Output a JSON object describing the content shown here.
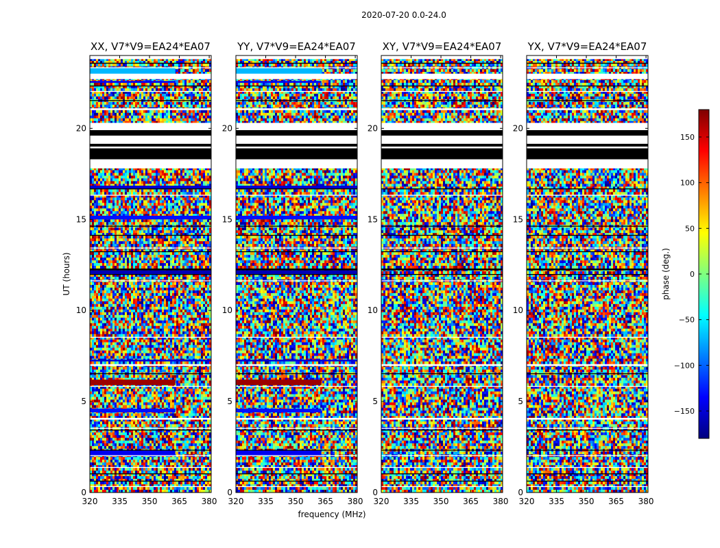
{
  "figure_title": "2020-07-20 0.0-24.0",
  "chart_data": {
    "type": "heatmap",
    "title": "2020-07-20 0.0-24.0",
    "xlabel": "frequency (MHz)",
    "ylabel": "UT (hours)",
    "xlim": [
      320,
      381
    ],
    "ylim": [
      0,
      24
    ],
    "x_ticks": [
      320,
      335,
      350,
      365,
      380
    ],
    "y_ticks": [
      0,
      5,
      10,
      15,
      20
    ],
    "colormap": "jet",
    "colorbar": {
      "label": "phase (deg.)",
      "range": [
        -180,
        180
      ],
      "ticks": [
        -150,
        -100,
        -50,
        0,
        50,
        100,
        150
      ],
      "tick_labels": [
        "−150",
        "−100",
        "−50",
        "0",
        "50",
        "100",
        "150"
      ],
      "colors": [
        "#00007f",
        "#0000ff",
        "#007fff",
        "#00ffff",
        "#7fff7f",
        "#ffff00",
        "#ff7f00",
        "#ff0000",
        "#7f0000"
      ]
    },
    "panels": [
      {
        "title": "XX, V7*V9=EA24*EA07",
        "polarization": "XX"
      },
      {
        "title": "YY, V7*V9=EA24*EA07",
        "polarization": "YY"
      },
      {
        "title": "XY, V7*V9=EA24*EA07",
        "polarization": "XY"
      },
      {
        "title": "YX, V7*V9=EA24*EA07",
        "polarization": "YX"
      }
    ],
    "flagged_hours_white": [
      [
        17.8,
        20.3
      ],
      [
        22.7,
        23.0
      ],
      [
        6.95,
        7.05
      ],
      [
        4.0,
        4.1
      ],
      [
        5.8,
        5.85
      ],
      [
        2.0,
        2.05
      ],
      [
        1.35,
        1.4
      ],
      [
        16.3,
        16.35
      ],
      [
        11.6,
        11.65
      ],
      [
        8.5,
        8.55
      ],
      [
        3.5,
        3.55
      ],
      [
        0.3,
        0.35
      ],
      [
        13.4,
        13.45
      ],
      [
        18.9,
        19.0
      ],
      [
        19.3,
        19.4
      ],
      [
        21.0,
        21.1
      ],
      [
        22.0,
        22.05
      ],
      [
        23.3,
        23.35
      ],
      [
        23.8,
        24.0
      ]
    ],
    "flagged_hours_black": [
      [
        18.3,
        18.9
      ],
      [
        19.0,
        19.15
      ],
      [
        19.6,
        19.9
      ],
      [
        23.55,
        23.6
      ],
      [
        22.3,
        22.35
      ],
      [
        21.5,
        21.55
      ],
      [
        12.2,
        12.3
      ],
      [
        11.95,
        12.0
      ],
      [
        13.2,
        13.25
      ],
      [
        14.1,
        14.15
      ],
      [
        14.6,
        14.65
      ],
      [
        16.65,
        16.7
      ],
      [
        3.4,
        3.45
      ],
      [
        1.0,
        1.05
      ],
      [
        0.6,
        0.65
      ],
      [
        2.3,
        2.35
      ],
      [
        6.5,
        6.55
      ]
    ],
    "coherent_rows": [
      {
        "panels": [
          "XX",
          "YY"
        ],
        "hours": [
          22.9,
          23.35
        ],
        "value_deg": -70,
        "x_to": 363
      },
      {
        "panels": [
          "XX",
          "YY"
        ],
        "hours": [
          22.5,
          22.6
        ],
        "value_deg": -140,
        "x_to": 363
      },
      {
        "panels": [
          "XX",
          "YY"
        ],
        "hours": [
          5.9,
          6.2
        ],
        "value_deg": 170,
        "x_to": 363
      },
      {
        "panels": [
          "XX",
          "YY"
        ],
        "hours": [
          4.4,
          4.6
        ],
        "value_deg": -130,
        "x_to": 363
      },
      {
        "panels": [
          "XX",
          "YY"
        ],
        "hours": [
          2.0,
          2.3
        ],
        "value_deg": -140,
        "x_to": 363
      },
      {
        "panels": [
          "XX",
          "YY"
        ],
        "hours": [
          15.0,
          15.2
        ],
        "value_deg": -130,
        "x_to": 381
      },
      {
        "panels": [
          "XX",
          "YY"
        ],
        "hours": [
          12.0,
          12.2
        ],
        "value_deg": -160,
        "x_to": 381
      },
      {
        "panels": [
          "XX",
          "YY"
        ],
        "hours": [
          16.7,
          16.85
        ],
        "value_deg": -150,
        "x_to": 381
      },
      {
        "panels": [
          "XX",
          "YY"
        ],
        "hours": [
          7.2,
          7.3
        ],
        "value_deg": -150,
        "x_to": 381
      }
    ]
  }
}
